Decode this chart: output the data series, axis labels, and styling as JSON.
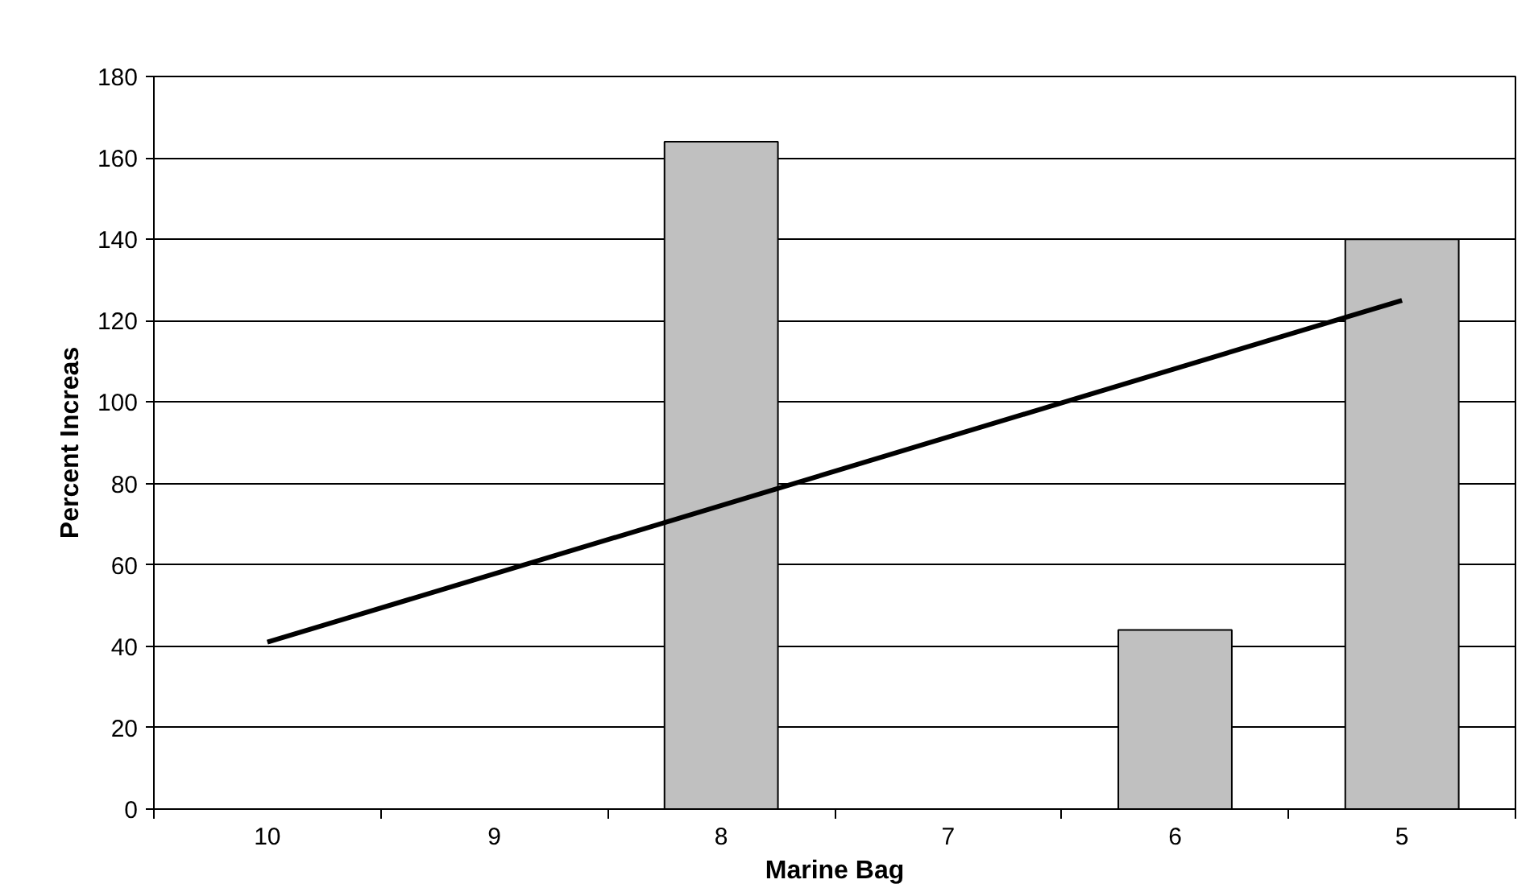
{
  "chart_data": {
    "type": "bar",
    "xlabel": "Marine Bag",
    "ylabel": "Percent Increas",
    "categories": [
      "10",
      "9",
      "8",
      "7",
      "6",
      "5"
    ],
    "series": [
      {
        "color": "#c0c0c0",
        "values": [
          null,
          null,
          164,
          null,
          44,
          140
        ]
      },
      {
        "type": "line",
        "color": "#000000",
        "x": [
          "10",
          "5"
        ],
        "values": [
          41,
          125
        ]
      }
    ],
    "ylim": [
      0,
      180
    ],
    "yticks": [
      0,
      20,
      40,
      60,
      80,
      100,
      120,
      140,
      160,
      180
    ],
    "grid": "y",
    "marker": "none",
    "line_style": "solid"
  }
}
